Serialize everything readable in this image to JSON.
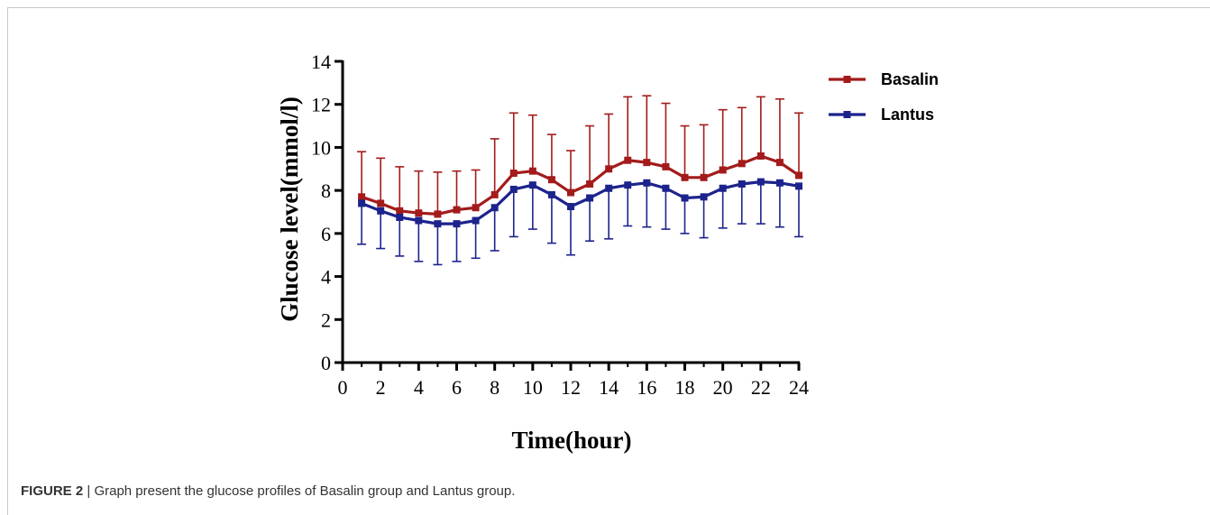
{
  "caption": {
    "label": "FIGURE 2",
    "separator": "|",
    "text": "Graph present the glucose profiles of Basalin group and Lantus group."
  },
  "chart_data": {
    "type": "line",
    "title": "",
    "xlabel": "Time(hour)",
    "ylabel": "Glucose level(mmol/l)",
    "xlim": [
      0,
      24
    ],
    "ylim": [
      0,
      14
    ],
    "xticks": [
      0,
      2,
      4,
      6,
      8,
      10,
      12,
      14,
      16,
      18,
      20,
      22,
      24
    ],
    "yticks": [
      0,
      2,
      4,
      6,
      8,
      10,
      12,
      14
    ],
    "grid": false,
    "legend_position": "top-right",
    "x": [
      1,
      2,
      3,
      4,
      5,
      6,
      7,
      8,
      9,
      10,
      11,
      12,
      13,
      14,
      15,
      16,
      17,
      18,
      19,
      20,
      21,
      22,
      23,
      24
    ],
    "series": [
      {
        "name": "Basalin",
        "color": "#a31b1b",
        "error_direction": "up",
        "values": [
          7.7,
          7.4,
          7.05,
          6.95,
          6.9,
          7.1,
          7.2,
          7.8,
          8.8,
          8.9,
          8.5,
          7.9,
          8.3,
          9.0,
          9.4,
          9.3,
          9.1,
          8.6,
          8.6,
          8.95,
          9.25,
          9.6,
          9.3,
          8.7
        ],
        "error_upper": [
          9.8,
          9.5,
          9.1,
          8.9,
          8.85,
          8.9,
          8.95,
          10.4,
          11.6,
          11.5,
          10.6,
          9.85,
          11.0,
          11.55,
          12.35,
          12.4,
          12.05,
          11.0,
          11.05,
          11.75,
          11.85,
          12.35,
          12.25,
          11.6
        ]
      },
      {
        "name": "Lantus",
        "color": "#1c238c",
        "error_direction": "down",
        "values": [
          7.4,
          7.05,
          6.75,
          6.6,
          6.45,
          6.45,
          6.6,
          7.2,
          8.05,
          8.25,
          7.8,
          7.25,
          7.65,
          8.1,
          8.25,
          8.35,
          8.1,
          7.65,
          7.7,
          8.1,
          8.3,
          8.4,
          8.35,
          8.2
        ],
        "error_lower": [
          5.5,
          5.3,
          4.95,
          4.7,
          4.55,
          4.7,
          4.85,
          5.2,
          5.85,
          6.2,
          5.55,
          5.0,
          5.65,
          5.75,
          6.35,
          6.3,
          6.2,
          6.0,
          5.8,
          6.25,
          6.45,
          6.45,
          6.3,
          5.85
        ]
      }
    ]
  }
}
